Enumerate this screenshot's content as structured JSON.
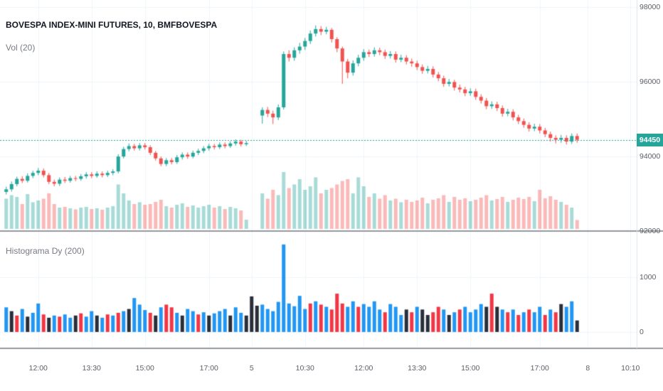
{
  "header": {
    "symbol_title": "BOVESPA INDEX-MINI FUTURES, 10, BMFBOVESPA",
    "indicator_vol": "Vol (20)",
    "indicator_histogram": "Histograma Dy (200)"
  },
  "colors": {
    "background": "#ffffff",
    "up": "#26a69a",
    "down": "#ef5350",
    "vol_up": "rgba(38,166,154,0.40)",
    "vol_down": "rgba(239,83,80,0.40)",
    "hist_blue": "#2196f3",
    "hist_red": "#f23645",
    "hist_black": "#2a2e39",
    "price_line": "#26a69a",
    "price_label_bg": "#26a69a",
    "price_label_text": "#ffffff",
    "grid": "#f0f3fa",
    "axis_line": "#e0e3eb",
    "separator": "#9598a1",
    "axis_text": "#5b5e66",
    "title_text": "#131722"
  },
  "price_axis": {
    "ticks": [
      98000,
      96000,
      94000,
      92000
    ],
    "last_price_label": "94450"
  },
  "hist_axis": {
    "ticks": [
      1000,
      0
    ]
  },
  "chart_data": {
    "type": "candlestick",
    "title": "BOVESPA INDEX-MINI FUTURES, 10, BMFBOVESPA",
    "price_line": 94450,
    "price_range": [
      92000,
      98200
    ],
    "hist_range": [
      -300,
      1845
    ],
    "time_labels": [
      {
        "text": "12:00",
        "i": 6
      },
      {
        "text": "13:30",
        "i": 16
      },
      {
        "text": "15:00",
        "i": 26
      },
      {
        "text": "17:00",
        "i": 38
      },
      {
        "text": "5",
        "i": 46
      },
      {
        "text": "10:30",
        "i": 56
      },
      {
        "text": "12:00",
        "i": 67
      },
      {
        "text": "13:30",
        "i": 77
      },
      {
        "text": "15:00",
        "i": 87
      },
      {
        "text": "17:00",
        "i": 100
      },
      {
        "text": "8",
        "i": 109
      },
      {
        "text": "10:10",
        "i": 117
      }
    ],
    "candles": [
      [
        93050,
        93190,
        92980,
        93120
      ],
      [
        93120,
        93330,
        93060,
        93260
      ],
      [
        93260,
        93460,
        93200,
        93400
      ],
      [
        93400,
        93470,
        93290,
        93350
      ],
      [
        93350,
        93550,
        93300,
        93480
      ],
      [
        93480,
        93620,
        93420,
        93560
      ],
      [
        93560,
        93690,
        93500,
        93620
      ],
      [
        93620,
        93680,
        93440,
        93500
      ],
      [
        93500,
        93560,
        93260,
        93320
      ],
      [
        93320,
        93380,
        93200,
        93270
      ],
      [
        93270,
        93440,
        93210,
        93380
      ],
      [
        93380,
        93450,
        93290,
        93350
      ],
      [
        93350,
        93480,
        93300,
        93420
      ],
      [
        93420,
        93480,
        93340,
        93400
      ],
      [
        93400,
        93530,
        93350,
        93470
      ],
      [
        93470,
        93580,
        93410,
        93520
      ],
      [
        93520,
        93580,
        93420,
        93480
      ],
      [
        93480,
        93600,
        93430,
        93540
      ],
      [
        93540,
        93600,
        93440,
        93500
      ],
      [
        93500,
        93620,
        93450,
        93560
      ],
      [
        93560,
        93660,
        93500,
        93600
      ],
      [
        93600,
        94060,
        93550,
        94000
      ],
      [
        94000,
        94260,
        93950,
        94200
      ],
      [
        94200,
        94350,
        94140,
        94280
      ],
      [
        94280,
        94340,
        94160,
        94220
      ],
      [
        94220,
        94360,
        94160,
        94300
      ],
      [
        94300,
        94360,
        94190,
        94250
      ],
      [
        94250,
        94300,
        94040,
        94100
      ],
      [
        94100,
        94150,
        93890,
        93950
      ],
      [
        93950,
        94000,
        93740,
        93800
      ],
      [
        93800,
        93960,
        93740,
        93900
      ],
      [
        93900,
        93960,
        93790,
        93850
      ],
      [
        93850,
        94040,
        93800,
        93980
      ],
      [
        93980,
        94110,
        93920,
        94050
      ],
      [
        94050,
        94110,
        93940,
        94000
      ],
      [
        94000,
        94160,
        93950,
        94100
      ],
      [
        94100,
        94210,
        94040,
        94150
      ],
      [
        94150,
        94280,
        94090,
        94220
      ],
      [
        94220,
        94340,
        94160,
        94280
      ],
      [
        94280,
        94340,
        94190,
        94250
      ],
      [
        94250,
        94380,
        94200,
        94320
      ],
      [
        94320,
        94380,
        94220,
        94280
      ],
      [
        94280,
        94410,
        94230,
        94350
      ],
      [
        94350,
        94460,
        94290,
        94400
      ],
      [
        94400,
        94450,
        94270,
        94330
      ],
      [
        94330,
        94420,
        94280,
        94360
      ],
      null,
      null,
      [
        95100,
        95320,
        94880,
        95250
      ],
      [
        95250,
        95330,
        95060,
        95150
      ],
      [
        95150,
        95230,
        94870,
        95050
      ],
      [
        95050,
        95400,
        94980,
        95320
      ],
      [
        95320,
        96820,
        95260,
        96750
      ],
      [
        96750,
        96850,
        96550,
        96650
      ],
      [
        96650,
        96930,
        96570,
        96850
      ],
      [
        96850,
        97050,
        96760,
        96950
      ],
      [
        96950,
        97180,
        96860,
        97100
      ],
      [
        97100,
        97380,
        97020,
        97300
      ],
      [
        97300,
        97520,
        97220,
        97420
      ],
      [
        97420,
        97500,
        97260,
        97350
      ],
      [
        97350,
        97480,
        97280,
        97400
      ],
      [
        97400,
        97450,
        97060,
        97150
      ],
      [
        97150,
        97200,
        96800,
        96900
      ],
      [
        96900,
        96950,
        95950,
        96550
      ],
      [
        96550,
        96620,
        96100,
        96250
      ],
      [
        96250,
        96580,
        96170,
        96500
      ],
      [
        96500,
        96730,
        96420,
        96650
      ],
      [
        96650,
        96880,
        96570,
        96800
      ],
      [
        96800,
        96870,
        96670,
        96750
      ],
      [
        96750,
        96930,
        96680,
        96850
      ],
      [
        96850,
        96920,
        96720,
        96800
      ],
      [
        96800,
        96870,
        96620,
        96700
      ],
      [
        96700,
        96830,
        96630,
        96750
      ],
      [
        96750,
        96820,
        96520,
        96600
      ],
      [
        96600,
        96730,
        96530,
        96650
      ],
      [
        96650,
        96720,
        96470,
        96550
      ],
      [
        96550,
        96630,
        96410,
        96500
      ],
      [
        96500,
        96570,
        96320,
        96400
      ],
      [
        96400,
        96470,
        96220,
        96300
      ],
      [
        96300,
        96430,
        96230,
        96350
      ],
      [
        96350,
        96420,
        96120,
        96200
      ],
      [
        96200,
        96270,
        96020,
        96100
      ],
      [
        96100,
        96170,
        95870,
        95950
      ],
      [
        95950,
        96080,
        95880,
        96000
      ],
      [
        96000,
        96060,
        95770,
        95850
      ],
      [
        95850,
        95930,
        95720,
        95800
      ],
      [
        95800,
        95870,
        95620,
        95700
      ],
      [
        95700,
        95830,
        95630,
        95750
      ],
      [
        95750,
        95820,
        95520,
        95600
      ],
      [
        95600,
        95670,
        95420,
        95500
      ],
      [
        95500,
        95570,
        95270,
        95350
      ],
      [
        95350,
        95480,
        95280,
        95400
      ],
      [
        95400,
        95470,
        95220,
        95300
      ],
      [
        95300,
        95370,
        95070,
        95150
      ],
      [
        95150,
        95280,
        95080,
        95200
      ],
      [
        95200,
        95270,
        94970,
        95050
      ],
      [
        95050,
        95120,
        94870,
        94950
      ],
      [
        94950,
        95020,
        94770,
        94850
      ],
      [
        94850,
        94920,
        94670,
        94750
      ],
      [
        94750,
        94880,
        94680,
        94800
      ],
      [
        94800,
        94870,
        94620,
        94700
      ],
      [
        94700,
        94770,
        94520,
        94600
      ],
      [
        94600,
        94670,
        94400,
        94500
      ],
      [
        94500,
        94570,
        94350,
        94450
      ],
      [
        94450,
        94580,
        94370,
        94500
      ],
      [
        94500,
        94570,
        94320,
        94400
      ],
      [
        94400,
        94620,
        94340,
        94550
      ],
      [
        94550,
        94620,
        94370,
        94450
      ]
    ],
    "volumes": [
      850,
      950,
      900,
      700,
      980,
      750,
      800,
      850,
      1000,
      700,
      600,
      620,
      580,
      550,
      600,
      620,
      560,
      580,
      540,
      600,
      640,
      1250,
      1000,
      800,
      700,
      750,
      680,
      700,
      760,
      820,
      640,
      600,
      680,
      720,
      620,
      660,
      600,
      640,
      680,
      600,
      640,
      560,
      620,
      580,
      520,
      260,
      0,
      0,
      1000,
      850,
      1100,
      950,
      1600,
      1150,
      1250,
      1400,
      1100,
      1200,
      1450,
      1000,
      1100,
      1150,
      1250,
      1350,
      1400,
      1000,
      1450,
      1200,
      900,
      1000,
      850,
      950,
      800,
      850,
      750,
      820,
      760,
      800,
      880,
      720,
      820,
      860,
      950,
      760,
      900,
      820,
      860,
      780,
      820,
      880,
      950,
      800,
      840,
      900,
      760,
      820,
      880,
      840,
      900,
      780,
      1100,
      860,
      920,
      820,
      760,
      680,
      600,
      250
    ],
    "histogram": {
      "values": [
        450,
        380,
        300,
        420,
        280,
        350,
        520,
        320,
        260,
        300,
        280,
        320,
        260,
        300,
        340,
        280,
        380,
        300,
        260,
        320,
        300,
        350,
        380,
        420,
        620,
        500,
        400,
        350,
        300,
        450,
        500,
        450,
        350,
        300,
        420,
        380,
        320,
        360,
        300,
        340,
        380,
        420,
        300,
        450,
        350,
        300,
        650,
        480,
        500,
        420,
        380,
        550,
        1600,
        520,
        470,
        660,
        420,
        520,
        560,
        500,
        460,
        410,
        700,
        520,
        460,
        560,
        460,
        510,
        460,
        560,
        410,
        360,
        510,
        460,
        310,
        410,
        360,
        460,
        410,
        310,
        360,
        460,
        410,
        310,
        360,
        410,
        460,
        360,
        410,
        510,
        460,
        700,
        460,
        410,
        360,
        410,
        310,
        360,
        410,
        360,
        460,
        310,
        410,
        360,
        510,
        460,
        560,
        210
      ],
      "colors": "bkrbkbbrkbrbbkrbbkbrbrbkbbbrkbrrbkbbrbkbbbkbbkkkbbbbbbbbbrbrbrrrbbrbbbbrbbbkrbkkrrbkbrbbbbkrkbrbrbrbbrbrkbbk"
    }
  }
}
